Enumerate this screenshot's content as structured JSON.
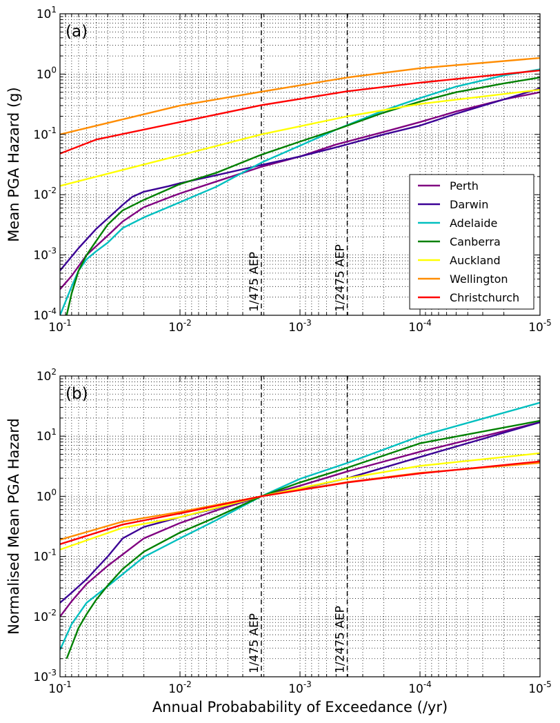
{
  "chart_data": [
    {
      "type": "line",
      "panel_label": "(a)",
      "xlabel": "",
      "ylabel": "Mean PGA Hazard (g)",
      "x_scale": "log",
      "y_scale": "log",
      "x_reversed": true,
      "xlim": [
        0.1,
        1e-05
      ],
      "ylim": [
        0.0001,
        10
      ],
      "x_ticks": [
        {
          "value": 0.1,
          "base": "10",
          "exp": "-1"
        },
        {
          "value": 0.01,
          "base": "10",
          "exp": "-2"
        },
        {
          "value": 0.001,
          "base": "10",
          "exp": "-3"
        },
        {
          "value": 0.0001,
          "base": "10",
          "exp": "-4"
        },
        {
          "value": 1e-05,
          "base": "10",
          "exp": "-5"
        }
      ],
      "y_ticks": [
        {
          "value": 0.0001,
          "base": "10",
          "exp": "-4"
        },
        {
          "value": 0.001,
          "base": "10",
          "exp": "-3"
        },
        {
          "value": 0.01,
          "base": "10",
          "exp": "-2"
        },
        {
          "value": 0.1,
          "base": "10",
          "exp": "-1"
        },
        {
          "value": 1,
          "base": "10",
          "exp": "0"
        },
        {
          "value": 10,
          "base": "10",
          "exp": "1"
        }
      ],
      "grid": true,
      "legend_position": "bottom-right",
      "reference_lines": [
        {
          "x": 0.0021,
          "label": "1/475 AEP"
        },
        {
          "x": 0.000404,
          "label": "1/2475 AEP"
        }
      ],
      "series": [
        {
          "name": "Perth",
          "color": "#800080",
          "x": [
            0.1,
            0.08,
            0.06,
            0.04,
            0.03,
            0.02,
            0.0125,
            0.01,
            0.005,
            0.0021,
            0.001,
            0.0005,
            0.0002,
            0.0001,
            5e-05,
            2e-05,
            1e-05
          ],
          "y": [
            0.00027,
            0.00045,
            0.001,
            0.0021,
            0.0036,
            0.0062,
            0.0089,
            0.0105,
            0.0165,
            0.029,
            0.043,
            0.068,
            0.11,
            0.16,
            0.24,
            0.38,
            0.5
          ]
        },
        {
          "name": "Darwin",
          "color": "#3b0095",
          "x": [
            0.1,
            0.07,
            0.05,
            0.03,
            0.025,
            0.02,
            0.0125,
            0.01,
            0.005,
            0.0021,
            0.001,
            0.0005,
            0.0002,
            0.0001,
            5e-05,
            2e-05,
            1e-05
          ],
          "y": [
            0.00055,
            0.0013,
            0.0027,
            0.0068,
            0.0092,
            0.0112,
            0.0138,
            0.0155,
            0.021,
            0.031,
            0.043,
            0.061,
            0.1,
            0.14,
            0.22,
            0.38,
            0.58
          ]
        },
        {
          "name": "Adelaide",
          "color": "#00bfbf",
          "x": [
            0.1,
            0.08,
            0.07,
            0.06,
            0.05,
            0.04,
            0.03,
            0.02,
            0.01,
            0.005,
            0.0021,
            0.001,
            0.0005,
            0.0002,
            0.0001,
            5e-05,
            2e-05,
            1e-05
          ],
          "y": [
            0.0001,
            0.0003,
            0.00055,
            0.00085,
            0.00115,
            0.0016,
            0.0028,
            0.0042,
            0.0075,
            0.0135,
            0.034,
            0.065,
            0.12,
            0.25,
            0.4,
            0.62,
            0.95,
            1.2
          ]
        },
        {
          "name": "Canberra",
          "color": "#008000",
          "x": [
            0.088,
            0.08,
            0.07,
            0.06,
            0.05,
            0.04,
            0.03,
            0.02,
            0.01,
            0.005,
            0.0021,
            0.001,
            0.0005,
            0.0002,
            0.0001,
            5e-05,
            2e-05,
            1e-05
          ],
          "y": [
            0.0001,
            0.00023,
            0.00055,
            0.001,
            0.0017,
            0.0032,
            0.0055,
            0.0082,
            0.015,
            0.023,
            0.046,
            0.076,
            0.12,
            0.23,
            0.35,
            0.5,
            0.7,
            0.88
          ]
        },
        {
          "name": "Auckland",
          "color": "#ffff00",
          "x": [
            0.1,
            0.01,
            0.0021,
            0.0004,
            0.0001,
            1e-05
          ],
          "y": [
            0.014,
            0.045,
            0.1,
            0.2,
            0.32,
            0.55
          ]
        },
        {
          "name": "Wellington",
          "color": "#ff8c00",
          "x": [
            0.1,
            0.01,
            0.0021,
            0.0004,
            0.0001,
            1e-05
          ],
          "y": [
            0.1,
            0.3,
            0.51,
            0.88,
            1.25,
            1.85
          ]
        },
        {
          "name": "Christchurch",
          "color": "#ff0000",
          "x": [
            0.1,
            0.05,
            0.01,
            0.0021,
            0.0004,
            0.0001,
            1e-05
          ],
          "y": [
            0.048,
            0.082,
            0.16,
            0.305,
            0.52,
            0.72,
            1.15
          ]
        }
      ]
    },
    {
      "type": "line",
      "panel_label": "(b)",
      "xlabel": "Annual Probabability of Exceedance (/yr)",
      "ylabel": "Normalised Mean PGA Hazard",
      "x_scale": "log",
      "y_scale": "log",
      "x_reversed": true,
      "xlim": [
        0.1,
        1e-05
      ],
      "ylim": [
        0.001,
        100
      ],
      "x_ticks": [
        {
          "value": 0.1,
          "base": "10",
          "exp": "-1"
        },
        {
          "value": 0.01,
          "base": "10",
          "exp": "-2"
        },
        {
          "value": 0.001,
          "base": "10",
          "exp": "-3"
        },
        {
          "value": 0.0001,
          "base": "10",
          "exp": "-4"
        },
        {
          "value": 1e-05,
          "base": "10",
          "exp": "-5"
        }
      ],
      "y_ticks": [
        {
          "value": 0.001,
          "base": "10",
          "exp": "-3"
        },
        {
          "value": 0.01,
          "base": "10",
          "exp": "-2"
        },
        {
          "value": 0.1,
          "base": "10",
          "exp": "-1"
        },
        {
          "value": 1,
          "base": "10",
          "exp": "0"
        },
        {
          "value": 10,
          "base": "10",
          "exp": "1"
        },
        {
          "value": 100,
          "base": "10",
          "exp": "2"
        }
      ],
      "grid": true,
      "reference_lines": [
        {
          "x": 0.0021,
          "label": "1/475 AEP"
        },
        {
          "x": 0.000404,
          "label": "1/2475 AEP"
        }
      ],
      "series": [
        {
          "name": "Perth",
          "color": "#800080",
          "x": [
            0.1,
            0.08,
            0.06,
            0.04,
            0.02,
            0.01,
            0.005,
            0.0021,
            0.001,
            0.0004,
            0.0001,
            1e-05
          ],
          "y": [
            0.01,
            0.018,
            0.035,
            0.07,
            0.2,
            0.36,
            0.58,
            1.0,
            1.5,
            2.6,
            5.5,
            17
          ]
        },
        {
          "name": "Darwin",
          "color": "#3b0095",
          "x": [
            0.1,
            0.08,
            0.06,
            0.04,
            0.03,
            0.02,
            0.01,
            0.005,
            0.0021,
            0.001,
            0.0004,
            0.0001,
            1e-05
          ],
          "y": [
            0.017,
            0.025,
            0.042,
            0.1,
            0.2,
            0.31,
            0.45,
            0.63,
            1.0,
            1.33,
            2.0,
            4.5,
            17
          ]
        },
        {
          "name": "Adelaide",
          "color": "#00bfbf",
          "x": [
            0.1,
            0.08,
            0.06,
            0.04,
            0.02,
            0.01,
            0.005,
            0.0021,
            0.001,
            0.0004,
            0.0001,
            1e-05
          ],
          "y": [
            0.0028,
            0.0075,
            0.017,
            0.032,
            0.098,
            0.2,
            0.4,
            1.0,
            1.95,
            3.6,
            10,
            36
          ]
        },
        {
          "name": "Canberra",
          "color": "#008000",
          "x": [
            0.088,
            0.07,
            0.06,
            0.05,
            0.04,
            0.03,
            0.02,
            0.01,
            0.005,
            0.0021,
            0.001,
            0.0004,
            0.0001,
            1e-05
          ],
          "y": [
            0.002,
            0.0065,
            0.011,
            0.019,
            0.033,
            0.062,
            0.12,
            0.25,
            0.45,
            1.0,
            1.7,
            3.0,
            7.6,
            18
          ]
        },
        {
          "name": "Auckland",
          "color": "#ffff00",
          "x": [
            0.1,
            0.03,
            0.01,
            0.0021,
            0.0004,
            0.0001,
            1e-05
          ],
          "y": [
            0.13,
            0.3,
            0.45,
            1.0,
            2.0,
            3.2,
            5.2
          ]
        },
        {
          "name": "Wellington",
          "color": "#ff8c00",
          "x": [
            0.1,
            0.03,
            0.01,
            0.0021,
            0.0004,
            0.0001,
            1e-05
          ],
          "y": [
            0.19,
            0.38,
            0.55,
            1.0,
            1.73,
            2.45,
            3.6
          ]
        },
        {
          "name": "Christchurch",
          "color": "#ff0000",
          "x": [
            0.1,
            0.03,
            0.01,
            0.0021,
            0.0004,
            0.0001,
            1e-05
          ],
          "y": [
            0.16,
            0.34,
            0.52,
            1.0,
            1.7,
            2.4,
            3.8
          ]
        }
      ]
    }
  ]
}
